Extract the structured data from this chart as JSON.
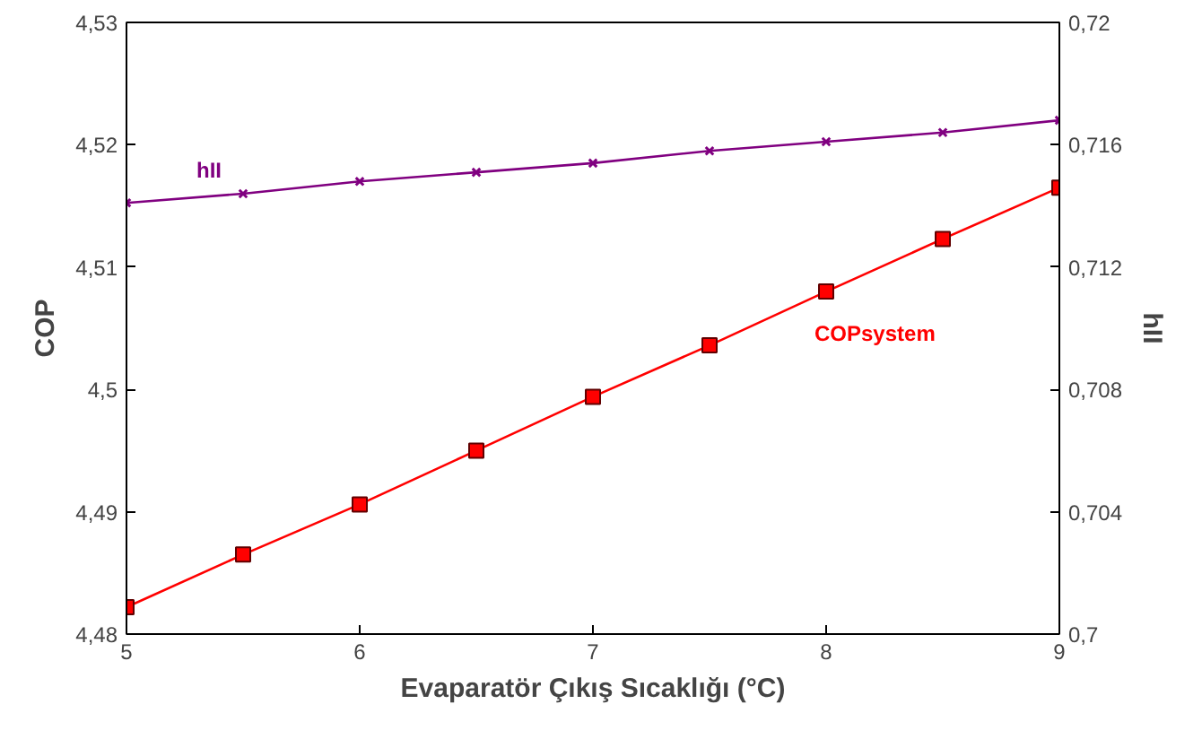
{
  "chart_data": {
    "type": "line",
    "xlabel": "Evaparatör Çıkış Sıcaklığı (°C)",
    "ylabel": "COP",
    "y2label": "hII",
    "x": [
      5,
      5.5,
      6,
      6.5,
      7,
      7.5,
      8,
      8.5,
      9
    ],
    "series": [
      {
        "name": "COPsystem",
        "color": "#ff0000",
        "marker": "square",
        "values": [
          4.4822,
          4.4865,
          4.4906,
          4.495,
          4.4994,
          4.5036,
          4.508,
          4.5123,
          4.5165
        ]
      },
      {
        "name": "hII",
        "color": "#800080",
        "marker": "cross",
        "axis": "y2",
        "values": [
          0.7141,
          0.7144,
          0.7148,
          0.7151,
          0.7154,
          0.7158,
          0.7161,
          0.7164,
          0.7168
        ]
      }
    ],
    "xlim": [
      5,
      9
    ],
    "xticks": [
      5,
      6,
      7,
      8,
      9
    ],
    "ylim": [
      4.48,
      4.53
    ],
    "yticks": [
      {
        "value": 4.48,
        "label": "4,48"
      },
      {
        "value": 4.49,
        "label": "4,49"
      },
      {
        "value": 4.5,
        "label": "4,5"
      },
      {
        "value": 4.51,
        "label": "4,51"
      },
      {
        "value": 4.52,
        "label": "4,52"
      },
      {
        "value": 4.53,
        "label": "4,53"
      }
    ],
    "y2lim": [
      0.7,
      0.72
    ],
    "y2ticks": [
      {
        "value": 0.7,
        "label": "0,7"
      },
      {
        "value": 0.704,
        "label": "0,704"
      },
      {
        "value": 0.708,
        "label": "0,708"
      },
      {
        "value": 0.712,
        "label": "0,712"
      },
      {
        "value": 0.716,
        "label": "0,716"
      },
      {
        "value": 0.72,
        "label": "0,72"
      }
    ],
    "grid": false,
    "line_style": "solid"
  }
}
